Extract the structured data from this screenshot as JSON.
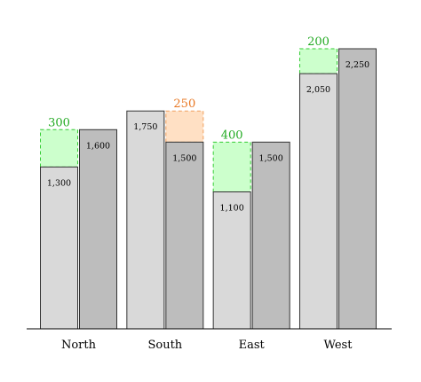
{
  "chart_data": {
    "type": "bar",
    "categories": [
      "North",
      "South",
      "East",
      "West"
    ],
    "series": [
      {
        "values": [
          1300,
          1750,
          1100,
          2050
        ],
        "labels": [
          "1,300",
          "1,750",
          "1,100",
          "2,050"
        ],
        "fill": "#d9d9d9"
      },
      {
        "values": [
          1600,
          1500,
          1500,
          2250
        ],
        "labels": [
          "1,600",
          "1,500",
          "1,500",
          "2,250"
        ],
        "fill": "#bdbdbd"
      }
    ],
    "differences": [
      {
        "category": "North",
        "value": 300,
        "label": "300",
        "direction": "increase"
      },
      {
        "category": "South",
        "value": 250,
        "label": "250",
        "direction": "decrease"
      },
      {
        "category": "East",
        "value": 400,
        "label": "400",
        "direction": "increase"
      },
      {
        "category": "West",
        "value": 200,
        "label": "200",
        "direction": "increase"
      }
    ],
    "colors": {
      "increase_fill": "#ccffcc",
      "increase_stroke": "#33cc33",
      "increase_text": "#22aa22",
      "decrease_fill": "#ffe0c4",
      "decrease_stroke": "#f0a060",
      "decrease_text": "#e87722",
      "bar_stroke": "#333333",
      "axis": "#000000"
    },
    "ylim": [
      0,
      2250
    ],
    "grid": false,
    "title": "",
    "xlabel": "",
    "ylabel": ""
  }
}
